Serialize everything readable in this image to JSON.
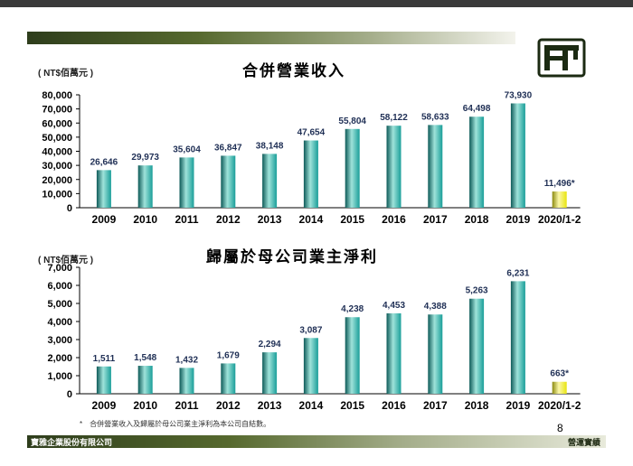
{
  "page": {
    "page_number": "8",
    "footnote": "*　合併營業收入及歸屬於母公司業主淨利為本公司自結數。",
    "company": "寶雅企業股份有限公司",
    "section": "營運實績"
  },
  "colors": {
    "bar": "#1a9e99",
    "bar_dark": "#0d5a58",
    "bar_light": "#9fe3da",
    "highlight_bar": "#e8e40e",
    "highlight_dark": "#8c8a10",
    "highlight_light": "#fbf8a8"
  },
  "chart_data": [
    {
      "type": "bar",
      "title": "合併營業收入",
      "unit": "( NT$佰萬元 )",
      "categories": [
        "2009",
        "2010",
        "2011",
        "2012",
        "2013",
        "2014",
        "2015",
        "2016",
        "2017",
        "2018",
        "2019",
        "2020/1-2"
      ],
      "values": [
        26646,
        29973,
        35604,
        36847,
        38148,
        47654,
        55804,
        58122,
        58633,
        64498,
        73930,
        11496
      ],
      "labels": [
        "26,646",
        "29,973",
        "35,604",
        "36,847",
        "38,148",
        "47,654",
        "55,804",
        "58,122",
        "58,633",
        "64,498",
        "73,930",
        "11,496*"
      ],
      "highlight": [
        false,
        false,
        false,
        false,
        false,
        false,
        false,
        false,
        false,
        false,
        false,
        true
      ],
      "ylim": [
        0,
        80000
      ],
      "yticks": [
        0,
        10000,
        20000,
        30000,
        40000,
        50000,
        60000,
        70000,
        80000
      ],
      "ytick_labels": [
        "0",
        "10,000",
        "20,000",
        "30,000",
        "40,000",
        "50,000",
        "60,000",
        "70,000",
        "80,000"
      ],
      "grid": false
    },
    {
      "type": "bar",
      "title": "歸屬於母公司業主淨利",
      "unit": "( NT$佰萬元 )",
      "categories": [
        "2009",
        "2010",
        "2011",
        "2012",
        "2013",
        "2014",
        "2015",
        "2016",
        "2017",
        "2018",
        "2019",
        "2020/1-2"
      ],
      "values": [
        1511,
        1548,
        1432,
        1679,
        2294,
        3087,
        4238,
        4453,
        4388,
        5263,
        6231,
        663
      ],
      "labels": [
        "1,511",
        "1,548",
        "1,432",
        "1,679",
        "2,294",
        "3,087",
        "4,238",
        "4,453",
        "4,388",
        "5,263",
        "6,231",
        "663*"
      ],
      "highlight": [
        false,
        false,
        false,
        false,
        false,
        false,
        false,
        false,
        false,
        false,
        false,
        true
      ],
      "ylim": [
        0,
        7000
      ],
      "yticks": [
        0,
        1000,
        2000,
        3000,
        4000,
        5000,
        6000,
        7000
      ],
      "ytick_labels": [
        "0",
        "1,000",
        "2,000",
        "3,000",
        "4,000",
        "5,000",
        "6,000",
        "7,000"
      ],
      "grid": false
    }
  ]
}
